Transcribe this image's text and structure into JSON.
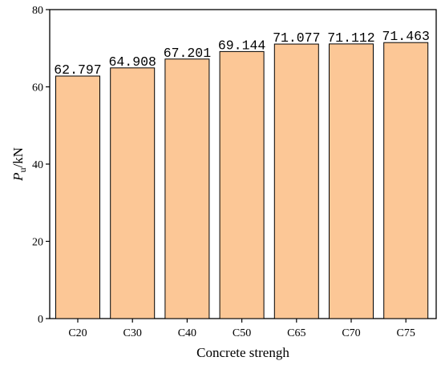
{
  "chart_data": {
    "type": "bar",
    "categories": [
      "C20",
      "C30",
      "C40",
      "C50",
      "C65",
      "C70",
      "C75"
    ],
    "values": [
      62.797,
      64.908,
      67.201,
      69.144,
      71.077,
      71.112,
      71.463
    ],
    "data_labels": [
      "62.797",
      "64.908",
      "67.201",
      "69.144",
      "71.077",
      "71.112",
      "71.463"
    ],
    "xlabel": "Concrete strengh",
    "ylabel_main": "P",
    "ylabel_sub": "u",
    "ylabel_unit": "/kN",
    "ylim": [
      0,
      80
    ],
    "yticks": [
      0,
      20,
      40,
      60,
      80
    ],
    "bar_color": "#fcc796",
    "bar_stroke": "#000000",
    "grid": false
  }
}
